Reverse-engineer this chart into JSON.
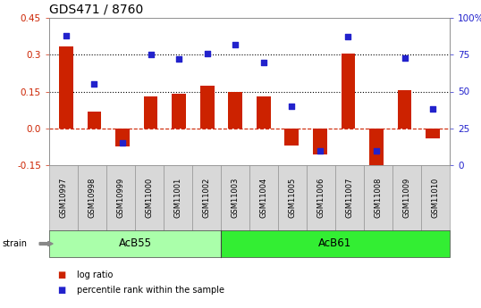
{
  "title": "GDS471 / 8760",
  "samples": [
    "GSM10997",
    "GSM10998",
    "GSM10999",
    "GSM11000",
    "GSM11001",
    "GSM11002",
    "GSM11003",
    "GSM11004",
    "GSM11005",
    "GSM11006",
    "GSM11007",
    "GSM11008",
    "GSM11009",
    "GSM11010"
  ],
  "log_ratio": [
    0.335,
    0.07,
    -0.075,
    0.13,
    0.14,
    0.175,
    0.15,
    0.13,
    -0.07,
    -0.105,
    0.305,
    -0.22,
    0.155,
    -0.04
  ],
  "percentile_pct": [
    88,
    55,
    15,
    75,
    72,
    76,
    82,
    70,
    40,
    10,
    87,
    10,
    73,
    38
  ],
  "groups": [
    {
      "name": "AcB55",
      "start": 0,
      "end": 5,
      "color": "#AAFFAA"
    },
    {
      "name": "AcB61",
      "start": 6,
      "end": 13,
      "color": "#33EE33"
    }
  ],
  "ylim_left": [
    -0.15,
    0.45
  ],
  "ylim_right": [
    0,
    100
  ],
  "yticks_left": [
    -0.15,
    0.0,
    0.15,
    0.3,
    0.45
  ],
  "yticks_right_vals": [
    0,
    25,
    50,
    75,
    100
  ],
  "yticks_right_labels": [
    "0",
    "25",
    "50",
    "75",
    "100%"
  ],
  "hlines": [
    0.15,
    0.3
  ],
  "bar_color": "#CC2200",
  "dot_color": "#2222CC",
  "zero_line_color": "#CC2200",
  "left_tick_color": "#CC2200",
  "right_tick_color": "#2222CC",
  "tick_label_fontsize": 6.0,
  "title_fontsize": 10,
  "group_label_fontsize": 8.5,
  "legend_fontsize": 7,
  "bar_width": 0.5
}
